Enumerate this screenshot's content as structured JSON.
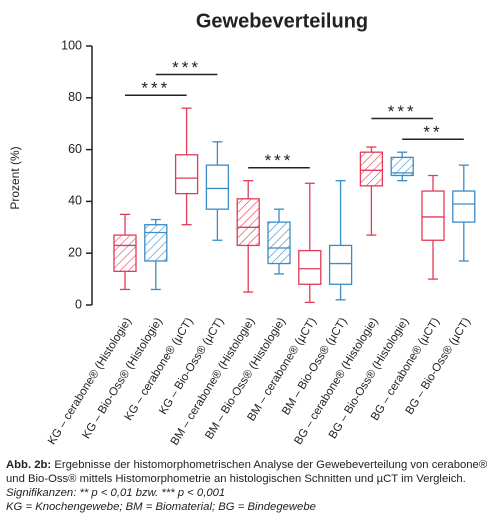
{
  "chart_data": {
    "type": "box",
    "title": "Gewebeverteilung",
    "y_label": "Prozent (%)",
    "categories": [
      "KG – cerabone® (Histologie)",
      "KG – Bio-Oss® (Histologie)",
      "KG – cerabone® (µCT)",
      "KG – Bio-Oss® (µCT)",
      "BM – cerabone® (Histologie)",
      "BM – Bio-Oss® (Histologie)",
      "BM – cerabone® (µCT)",
      "BM – Bio-Oss® (µCT)",
      "BG – cerabone® (Histologie)",
      "BG – Bio-Oss® (Histologie)",
      "BG – cerabone® (µCT)",
      "BG – Bio-Oss® (µCT)"
    ],
    "boxes": [
      {
        "min": 6,
        "q1": 13,
        "median": 23,
        "q3": 27,
        "max": 35
      },
      {
        "min": 6,
        "q1": 17,
        "median": 28,
        "q3": 31,
        "max": 33
      },
      {
        "min": 31,
        "q1": 43,
        "median": 49,
        "q3": 58,
        "max": 76
      },
      {
        "min": 25,
        "q1": 37,
        "median": 45,
        "q3": 54,
        "max": 63
      },
      {
        "min": 5,
        "q1": 23,
        "median": 30,
        "q3": 41,
        "max": 48
      },
      {
        "min": 12,
        "q1": 16,
        "median": 22,
        "q3": 32,
        "max": 37
      },
      {
        "min": 1,
        "q1": 8,
        "median": 14,
        "q3": 21,
        "max": 47
      },
      {
        "min": 2,
        "q1": 8,
        "median": 16,
        "q3": 23,
        "max": 48
      },
      {
        "min": 27,
        "q1": 46,
        "median": 52,
        "q3": 59,
        "max": 61
      },
      {
        "min": 48,
        "q1": 50,
        "median": 51,
        "q3": 57,
        "max": 59
      },
      {
        "min": 10,
        "q1": 25,
        "median": 34,
        "q3": 44,
        "max": 50
      },
      {
        "min": 17,
        "q1": 32,
        "median": 39,
        "q3": 44,
        "max": 54
      }
    ],
    "colors": [
      "#e23b57",
      "#3a8cc6",
      "#e23b57",
      "#3a8cc6",
      "#e23b57",
      "#3a8cc6",
      "#e23b57",
      "#3a8cc6",
      "#e23b57",
      "#3a8cc6",
      "#e23b57",
      "#3a8cc6"
    ],
    "hatched": [
      true,
      true,
      false,
      false,
      true,
      true,
      false,
      false,
      true,
      true,
      false,
      false
    ],
    "ylim": [
      0,
      100
    ],
    "yticks": [
      0,
      20,
      40,
      60,
      80,
      100
    ],
    "significance": [
      {
        "from": 0,
        "to": 2,
        "label": "***"
      },
      {
        "from": 1,
        "to": 3,
        "label": "***"
      },
      {
        "from": 4,
        "to": 6,
        "label": "***"
      },
      {
        "from": 9,
        "to": 11,
        "label": "**"
      },
      {
        "from": 8,
        "to": 10,
        "label": "***"
      }
    ]
  },
  "caption": {
    "label": "Abb. 2b:",
    "text": "Ergebnisse der histomorphometrischen Analyse der Gewebeverteilung von cerabone® und Bio-Oss® mittels Histomorphometrie an histologischen Schnitten und µCT im Vergleich.",
    "significance": "Signifikanzen: ** p < 0,01 bzw. *** p < 0,001",
    "abbreviations": "KG = Knochengewebe; BM = Biomaterial; BG = Bindegewebe"
  }
}
